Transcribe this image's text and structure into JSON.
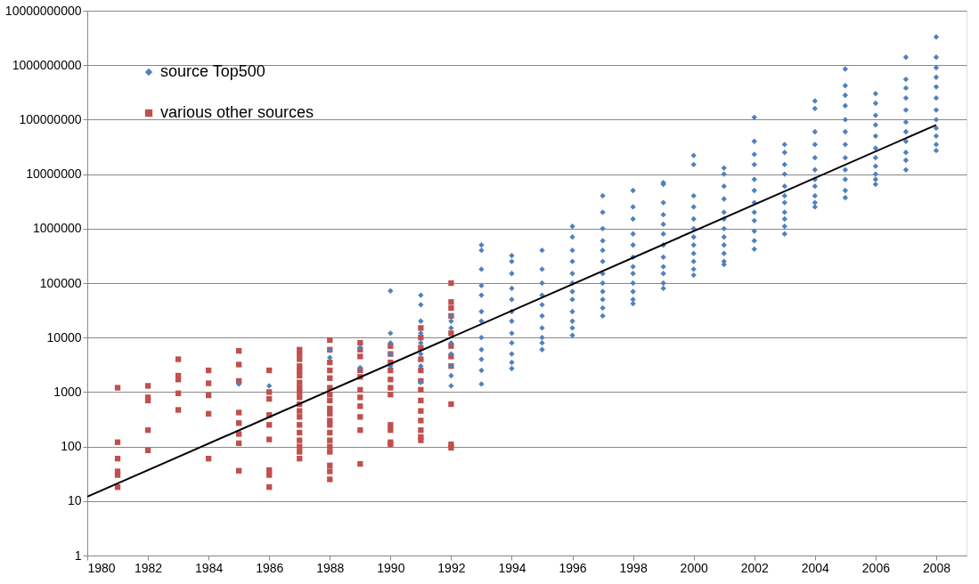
{
  "chart_data": {
    "type": "scatter",
    "log": "y",
    "grid": "y",
    "legend": "top left",
    "xlim": [
      1980,
      2009
    ],
    "xticks": [
      1980,
      1982,
      1984,
      1986,
      1988,
      1990,
      1992,
      1994,
      1996,
      1998,
      2000,
      2002,
      2004,
      2006,
      2008
    ],
    "ylim": [
      1,
      10000000000
    ],
    "yticks": [
      1,
      10,
      100,
      1000,
      10000,
      100000,
      1000000,
      10000000,
      100000000,
      1000000000,
      10000000000
    ],
    "series": [
      {
        "name": "source Top500",
        "color": "#4f81bd",
        "marker": "diamond",
        "x": [
          1985,
          1986,
          1988,
          1988,
          1989,
          1989,
          1990,
          1990,
          1990,
          1990,
          1990,
          1991,
          1991,
          1991,
          1991,
          1991,
          1991,
          1991,
          1991,
          1992,
          1992,
          1992,
          1992,
          1992,
          1992,
          1992,
          1992,
          1993,
          1993,
          1993,
          1993,
          1993,
          1993,
          1993,
          1993,
          1993,
          1993,
          1993,
          1993,
          1994,
          1994,
          1994,
          1994,
          1994,
          1994,
          1994,
          1994,
          1994,
          1994,
          1994,
          1994,
          1995,
          1995,
          1995,
          1995,
          1995,
          1995,
          1995,
          1995,
          1995,
          1995,
          1996,
          1996,
          1996,
          1996,
          1996,
          1996,
          1996,
          1996,
          1996,
          1996,
          1996,
          1996,
          1997,
          1997,
          1997,
          1997,
          1997,
          1997,
          1997,
          1997,
          1997,
          1997,
          1997,
          1997,
          1998,
          1998,
          1998,
          1998,
          1998,
          1998,
          1998,
          1998,
          1998,
          1998,
          1998,
          1998,
          1999,
          1999,
          1999,
          1999,
          1999,
          1999,
          1999,
          1999,
          1999,
          1999,
          1999,
          1999,
          2000,
          2000,
          2000,
          2000,
          2000,
          2000,
          2000,
          2000,
          2000,
          2000,
          2000,
          2000,
          2001,
          2001,
          2001,
          2001,
          2001,
          2001,
          2001,
          2001,
          2001,
          2001,
          2001,
          2001,
          2002,
          2002,
          2002,
          2002,
          2002,
          2002,
          2002,
          2002,
          2002,
          2002,
          2002,
          2002,
          2003,
          2003,
          2003,
          2003,
          2003,
          2003,
          2003,
          2003,
          2003,
          2003,
          2003,
          2004,
          2004,
          2004,
          2004,
          2004,
          2004,
          2004,
          2004,
          2004,
          2004,
          2004,
          2005,
          2005,
          2005,
          2005,
          2005,
          2005,
          2005,
          2005,
          2005,
          2005,
          2005,
          2005,
          2006,
          2006,
          2006,
          2006,
          2006,
          2006,
          2006,
          2006,
          2006,
          2006,
          2006,
          2007,
          2007,
          2007,
          2007,
          2007,
          2007,
          2007,
          2007,
          2007,
          2007,
          2007,
          2008,
          2008,
          2008,
          2008,
          2008,
          2008,
          2008,
          2008,
          2008,
          2008,
          2008,
          2008
        ],
        "values": [
          1400,
          1300,
          5800,
          4300,
          2800,
          6500,
          72000,
          12000,
          8000,
          5000,
          3000,
          60000,
          40000,
          20000,
          12000,
          8000,
          5000,
          3000,
          1500,
          25000,
          20000,
          15000,
          8000,
          5000,
          3000,
          2000,
          1300,
          500000,
          400000,
          180000,
          90000,
          60000,
          30000,
          20000,
          10000,
          6000,
          4000,
          2500,
          1400,
          320000,
          250000,
          150000,
          80000,
          50000,
          30000,
          20000,
          12000,
          8000,
          5000,
          3500,
          2700,
          400000,
          180000,
          100000,
          60000,
          40000,
          25000,
          15000,
          10000,
          8000,
          6000,
          1100000,
          700000,
          400000,
          250000,
          150000,
          100000,
          70000,
          50000,
          30000,
          20000,
          15000,
          11000,
          4000000,
          2000000,
          1000000,
          600000,
          400000,
          250000,
          150000,
          100000,
          70000,
          50000,
          35000,
          25000,
          5000000,
          2500000,
          1500000,
          800000,
          500000,
          300000,
          200000,
          150000,
          100000,
          70000,
          50000,
          42000,
          7000000,
          6500000,
          3000000,
          1800000,
          1200000,
          800000,
          500000,
          300000,
          200000,
          150000,
          100000,
          80000,
          22000000,
          15000000,
          4000000,
          2500000,
          1500000,
          1000000,
          700000,
          500000,
          350000,
          250000,
          180000,
          140000,
          13000000,
          10000000,
          6000000,
          3500000,
          2000000,
          1500000,
          1000000,
          700000,
          500000,
          350000,
          250000,
          220000,
          110000000,
          40000000,
          23000000,
          15000000,
          8000000,
          5000000,
          3000000,
          2000000,
          1400000,
          900000,
          600000,
          420000,
          35000000,
          25000000,
          15000000,
          10000000,
          6000000,
          4000000,
          3000000,
          2000000,
          1500000,
          1100000,
          800000,
          220000000,
          160000000,
          60000000,
          35000000,
          20000000,
          12000000,
          8000000,
          6000000,
          4000000,
          3000000,
          2500000,
          850000000,
          420000000,
          280000000,
          180000000,
          100000000,
          60000000,
          35000000,
          20000000,
          12000000,
          8000000,
          5000000,
          3700000,
          300000000,
          200000000,
          120000000,
          80000000,
          50000000,
          30000000,
          20000000,
          14000000,
          10000000,
          8000000,
          6500000,
          1400000000,
          550000000,
          380000000,
          250000000,
          150000000,
          90000000,
          60000000,
          40000000,
          25000000,
          18000000,
          12000000,
          3300000000,
          1400000000,
          900000000,
          600000000,
          400000000,
          250000000,
          150000000,
          100000000,
          70000000,
          50000000,
          35000000,
          27000000
        ]
      },
      {
        "name": "various other sources",
        "color": "#c0504d",
        "marker": "square",
        "x": [
          1981,
          1981,
          1981,
          1981,
          1981,
          1981,
          1982,
          1982,
          1982,
          1982,
          1982,
          1983,
          1983,
          1983,
          1983,
          1983,
          1984,
          1984,
          1984,
          1984,
          1984,
          1985,
          1985,
          1985,
          1985,
          1985,
          1985,
          1985,
          1985,
          1986,
          1986,
          1986,
          1986,
          1986,
          1986,
          1986,
          1986,
          1986,
          1987,
          1987,
          1987,
          1987,
          1987,
          1987,
          1987,
          1987,
          1987,
          1987,
          1987,
          1987,
          1987,
          1987,
          1987,
          1987,
          1987,
          1987,
          1987,
          1988,
          1988,
          1988,
          1988,
          1988,
          1988,
          1988,
          1988,
          1988,
          1988,
          1988,
          1988,
          1988,
          1988,
          1988,
          1988,
          1988,
          1988,
          1988,
          1989,
          1989,
          1989,
          1989,
          1989,
          1989,
          1989,
          1989,
          1989,
          1989,
          1989,
          1990,
          1990,
          1990,
          1990,
          1990,
          1990,
          1990,
          1990,
          1990,
          1990,
          1990,
          1991,
          1991,
          1991,
          1991,
          1991,
          1991,
          1991,
          1991,
          1991,
          1991,
          1991,
          1991,
          1991,
          1992,
          1992,
          1992,
          1992,
          1992,
          1992,
          1992,
          1992,
          1992,
          1992,
          1992
        ],
        "values": [
          1200,
          120,
          60,
          35,
          30,
          18,
          1300,
          800,
          700,
          200,
          85,
          4000,
          2000,
          1700,
          950,
          470,
          2500,
          1450,
          870,
          400,
          60,
          5700,
          3200,
          1600,
          420,
          270,
          170,
          115,
          36,
          2500,
          1000,
          750,
          380,
          250,
          135,
          37,
          30,
          18,
          6000,
          5000,
          4000,
          3000,
          2500,
          2000,
          1500,
          1200,
          1000,
          800,
          600,
          450,
          350,
          250,
          180,
          130,
          100,
          80,
          60,
          9000,
          6000,
          3500,
          2500,
          1800,
          1200,
          900,
          700,
          500,
          400,
          300,
          250,
          180,
          130,
          100,
          80,
          45,
          35,
          25,
          8000,
          6000,
          4500,
          2500,
          1900,
          1100,
          800,
          550,
          350,
          200,
          48,
          7000,
          5000,
          3500,
          2500,
          1700,
          1200,
          900,
          250,
          200,
          120,
          110,
          15000,
          10000,
          6500,
          4000,
          2500,
          1600,
          1100,
          700,
          450,
          300,
          200,
          150,
          130,
          100000,
          45000,
          35000,
          25000,
          12000,
          7000,
          4500,
          3000,
          600,
          110,
          95
        ]
      },
      {
        "type": "line",
        "color": "#000000",
        "line_style": "solid",
        "x": [
          1980,
          2008
        ],
        "values": [
          12,
          80000000
        ]
      }
    ]
  }
}
